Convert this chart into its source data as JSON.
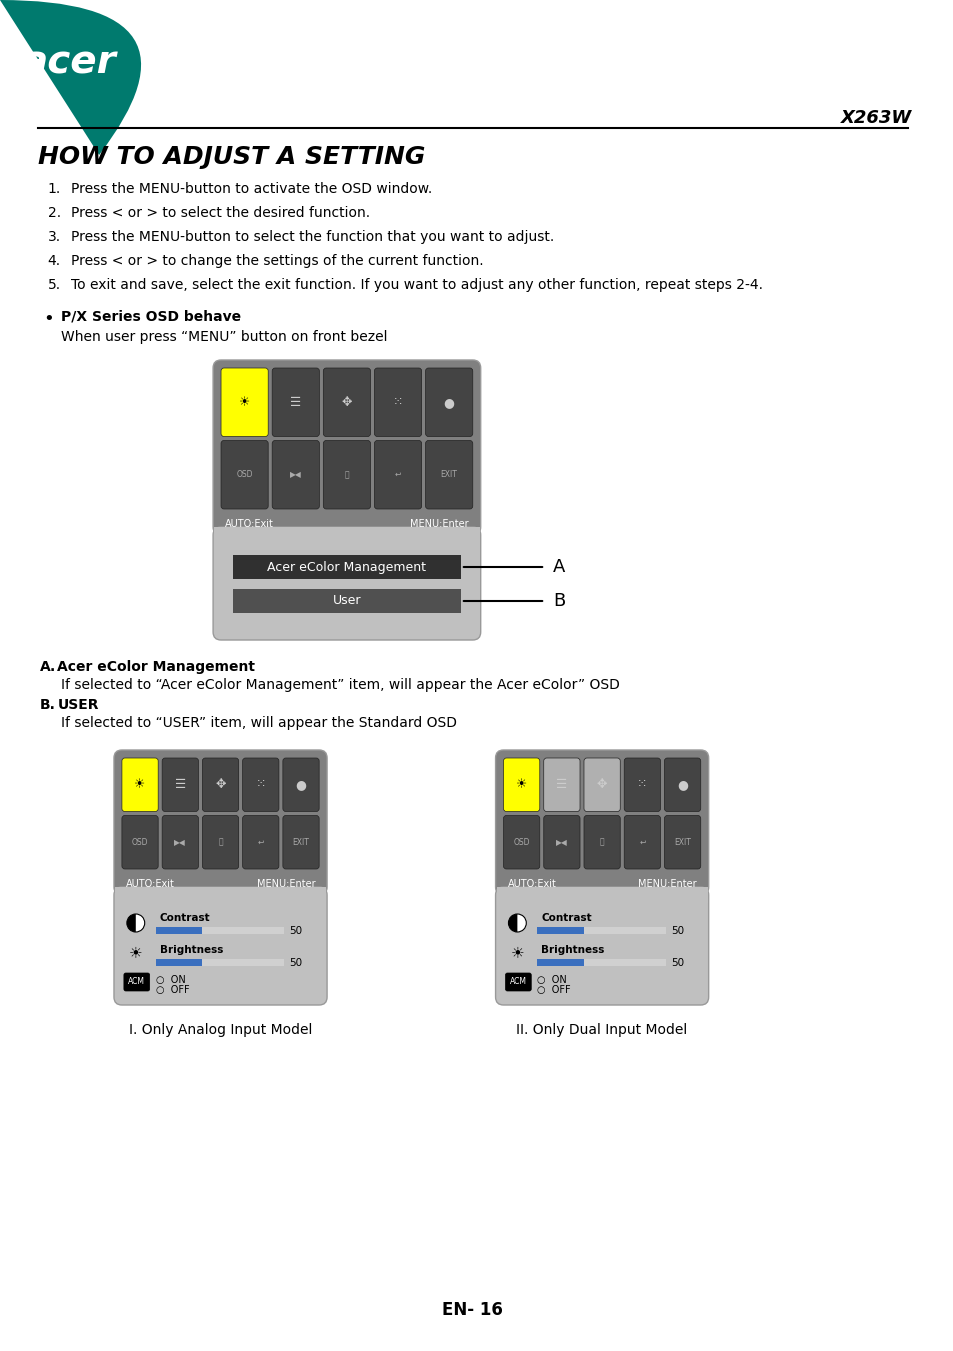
{
  "page_title": "X263W",
  "section_title": "HOW TO ADJUST A SETTING",
  "steps": [
    "Press the MENU-button to activate the OSD window.",
    "Press < or > to select the desired function.",
    "Press the MENU-button to select the function that you want to adjust.",
    "Press < or > to change the settings of the current function.",
    "To exit and save, select the exit function. If you want to adjust any other function, repeat steps 2-4."
  ],
  "bullet_title": "P/X Series OSD behave",
  "bullet_subtitle": "When user press “MENU” button on front bezel",
  "label_A": "A",
  "label_B": "B",
  "label_A_text": "Acer eColor Management",
  "label_B_text": "User",
  "section_A_title": "A.",
  "section_A_name": "Acer eColor Management",
  "section_A_text": "If selected to “Acer eColor Management” item, will appear the Acer eColor” OSD",
  "section_B_title": "B.",
  "section_B_name": "USER",
  "section_B_text": "If selected to “USER” item, will appear the Standard OSD",
  "caption_I": "I. Only Analog Input Model",
  "caption_II": "II. Only Dual Input Model",
  "footer": "EN- 16",
  "bg_color": "#ffffff",
  "acer_green": "#007a6e",
  "osd_bg": "#808080",
  "osd_darker": "#444444",
  "osd_light": "#aaaaaa",
  "osd_panel": "#c0c0c0",
  "osd_panel_border": "#999999",
  "yellow": "#ffff00",
  "blue_bar": "#3a6fbf",
  "black": "#000000",
  "white": "#ffffff"
}
